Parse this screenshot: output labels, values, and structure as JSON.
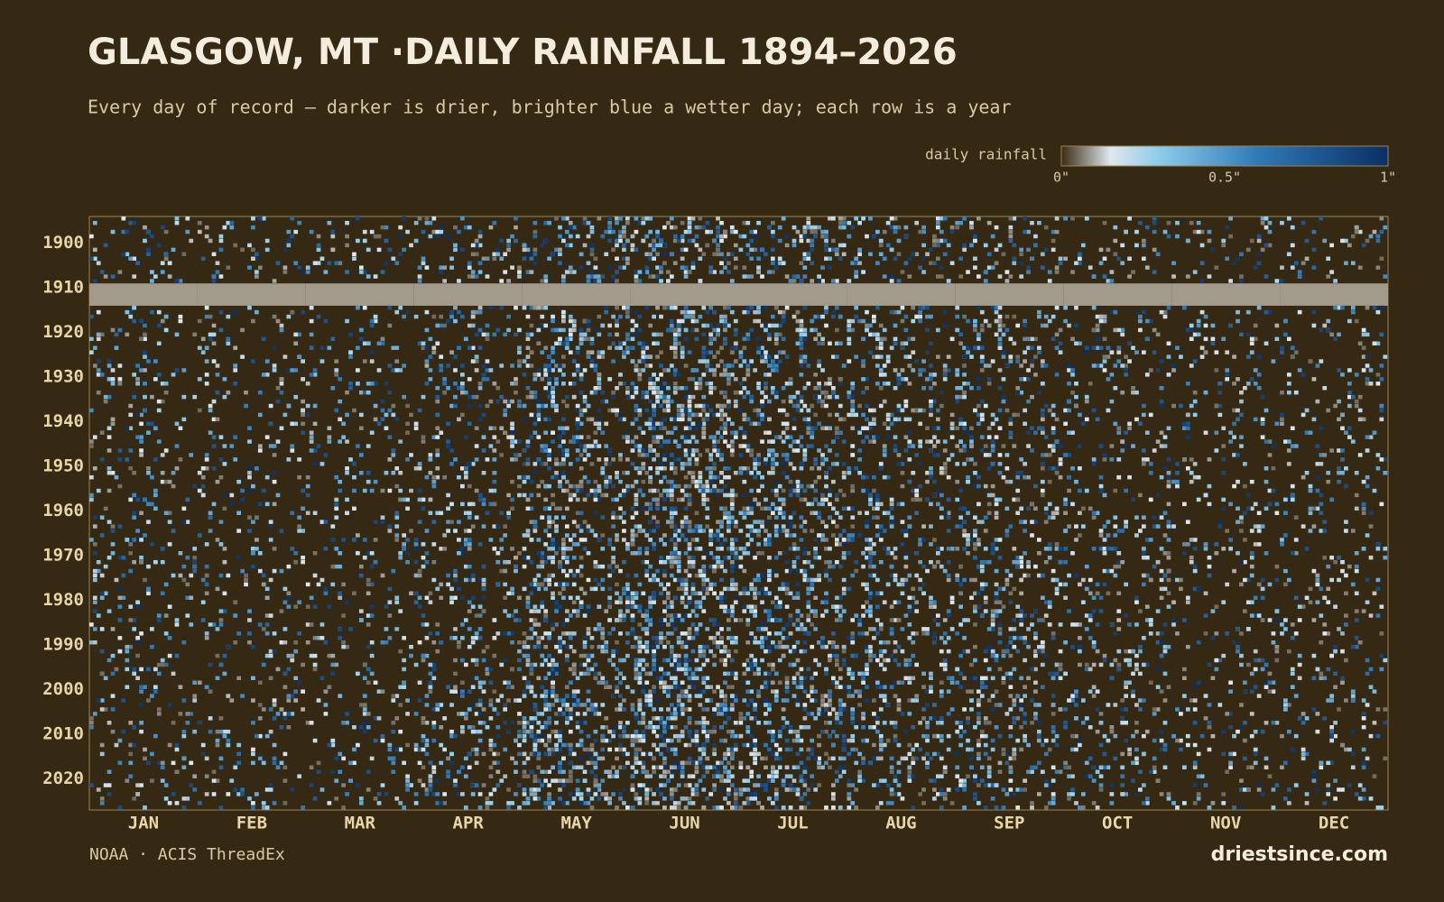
{
  "chart_data": {
    "type": "heatmap",
    "title": "GLASGOW, MT ·DAILY RAINFALL 1894–2026",
    "subtitle": "Every day of record — darker is drier, brighter blue a wetter day; each row is a year",
    "legend_title": "daily rainfall",
    "colorscale": {
      "stops": [
        0,
        0.15,
        0.3,
        0.6,
        1
      ],
      "colors": [
        "#3a2c14",
        "#dfe8ee",
        "#8ecbea",
        "#2f7ab8",
        "#0b2f63"
      ],
      "ticks": [
        {
          "value": 0,
          "label": "0\""
        },
        {
          "value": 0.5,
          "label": "0.5\""
        },
        {
          "value": 1,
          "label": "1\""
        }
      ]
    },
    "x": [
      "JAN",
      "FEB",
      "MAR",
      "APR",
      "MAY",
      "JUN",
      "JUL",
      "AUG",
      "SEP",
      "OCT",
      "NOV",
      "DEC"
    ],
    "y": [
      1894,
      1899,
      1904,
      1909,
      1914,
      1919,
      1924,
      1929,
      1934,
      1939,
      1944,
      1949,
      1954,
      1959,
      1964,
      1969,
      1974,
      1979,
      1984,
      1989,
      1994,
      1999,
      2004,
      2009,
      2014,
      2019,
      2024
    ],
    "ylim": [
      1894,
      2027
    ],
    "yticks": [
      1900,
      1910,
      1920,
      1930,
      1940,
      1950,
      1960,
      1970,
      1980,
      1990,
      2000,
      2010,
      2020
    ],
    "values": [
      [
        0.02,
        0.02,
        0.02,
        0.03,
        0.05,
        0.06,
        0.05,
        0.04,
        0.03,
        0.02,
        0.02,
        0.02
      ],
      [
        0.02,
        0.02,
        0.02,
        0.03,
        0.05,
        0.06,
        0.05,
        0.04,
        0.03,
        0.02,
        0.02,
        0.02
      ],
      [
        0.02,
        0.02,
        0.02,
        0.03,
        0.04,
        0.05,
        0.04,
        0.03,
        0.03,
        0.02,
        0.02,
        0.02
      ],
      [
        null,
        null,
        null,
        null,
        null,
        null,
        null,
        null,
        null,
        null,
        null,
        null
      ],
      [
        0.02,
        0.02,
        0.02,
        0.03,
        0.05,
        0.06,
        0.05,
        0.04,
        0.04,
        0.03,
        0.02,
        0.02
      ],
      [
        0.02,
        0.02,
        0.02,
        0.03,
        0.06,
        0.07,
        0.05,
        0.04,
        0.04,
        0.03,
        0.02,
        0.02
      ],
      [
        0.02,
        0.02,
        0.02,
        0.03,
        0.05,
        0.07,
        0.05,
        0.04,
        0.04,
        0.03,
        0.02,
        0.02
      ],
      [
        0.02,
        0.02,
        0.02,
        0.03,
        0.05,
        0.07,
        0.05,
        0.04,
        0.03,
        0.02,
        0.02,
        0.02
      ],
      [
        0.02,
        0.02,
        0.02,
        0.03,
        0.05,
        0.08,
        0.06,
        0.04,
        0.03,
        0.02,
        0.02,
        0.02
      ],
      [
        0.02,
        0.02,
        0.02,
        0.03,
        0.05,
        0.08,
        0.06,
        0.04,
        0.04,
        0.02,
        0.02,
        0.02
      ],
      [
        0.02,
        0.02,
        0.02,
        0.03,
        0.06,
        0.08,
        0.06,
        0.04,
        0.04,
        0.03,
        0.02,
        0.02
      ],
      [
        0.02,
        0.02,
        0.02,
        0.03,
        0.05,
        0.07,
        0.06,
        0.04,
        0.04,
        0.02,
        0.02,
        0.02
      ],
      [
        0.02,
        0.02,
        0.02,
        0.03,
        0.06,
        0.08,
        0.06,
        0.04,
        0.03,
        0.02,
        0.02,
        0.02
      ],
      [
        0.02,
        0.02,
        0.02,
        0.03,
        0.05,
        0.07,
        0.06,
        0.04,
        0.04,
        0.03,
        0.02,
        0.02
      ],
      [
        0.02,
        0.02,
        0.02,
        0.03,
        0.06,
        0.08,
        0.06,
        0.04,
        0.04,
        0.03,
        0.02,
        0.02
      ],
      [
        0.03,
        0.02,
        0.02,
        0.03,
        0.05,
        0.08,
        0.06,
        0.04,
        0.04,
        0.03,
        0.02,
        0.02
      ],
      [
        0.02,
        0.02,
        0.02,
        0.03,
        0.06,
        0.08,
        0.06,
        0.04,
        0.04,
        0.03,
        0.02,
        0.02
      ],
      [
        0.02,
        0.02,
        0.02,
        0.03,
        0.06,
        0.08,
        0.06,
        0.04,
        0.04,
        0.02,
        0.02,
        0.02
      ],
      [
        0.02,
        0.02,
        0.02,
        0.03,
        0.06,
        0.08,
        0.06,
        0.05,
        0.04,
        0.03,
        0.02,
        0.02
      ],
      [
        0.02,
        0.02,
        0.02,
        0.03,
        0.06,
        0.09,
        0.06,
        0.04,
        0.04,
        0.03,
        0.02,
        0.02
      ],
      [
        0.02,
        0.02,
        0.02,
        0.03,
        0.06,
        0.08,
        0.06,
        0.04,
        0.04,
        0.03,
        0.02,
        0.02
      ],
      [
        0.02,
        0.02,
        0.02,
        0.04,
        0.07,
        0.09,
        0.06,
        0.04,
        0.04,
        0.03,
        0.02,
        0.02
      ],
      [
        0.02,
        0.02,
        0.02,
        0.04,
        0.07,
        0.09,
        0.06,
        0.04,
        0.04,
        0.03,
        0.02,
        0.02
      ],
      [
        0.02,
        0.02,
        0.02,
        0.04,
        0.08,
        0.09,
        0.06,
        0.04,
        0.04,
        0.03,
        0.02,
        0.02
      ],
      [
        0.02,
        0.02,
        0.02,
        0.04,
        0.07,
        0.09,
        0.06,
        0.04,
        0.04,
        0.03,
        0.02,
        0.02
      ],
      [
        0.02,
        0.02,
        0.02,
        0.04,
        0.07,
        0.08,
        0.06,
        0.04,
        0.04,
        0.03,
        0.02,
        0.02
      ],
      [
        0.02,
        0.02,
        0.02,
        0.03,
        0.06,
        0.07,
        0.05,
        0.03,
        0.03,
        0.02,
        0.02,
        0.02
      ]
    ],
    "source": "NOAA · ACIS ThreadEx",
    "brand": "driestsince.com"
  }
}
